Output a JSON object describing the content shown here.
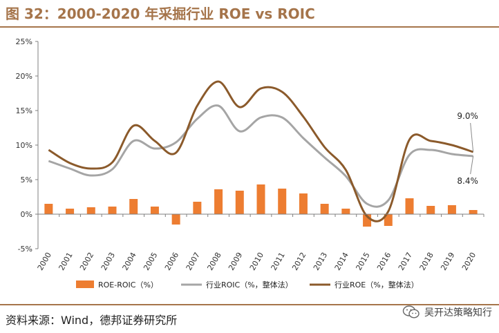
{
  "figure": {
    "title": "图 32：2000-2020 年采掘行业 ROE vs ROIC",
    "source": "资料来源：Wind，德邦证券研究所",
    "watermark": "吴开达策略知行",
    "watermark_icon": "wechat-icon"
  },
  "chart_data": {
    "type": "bar+line",
    "categories": [
      "2000",
      "2001",
      "2002",
      "2003",
      "2004",
      "2005",
      "2006",
      "2007",
      "2008",
      "2009",
      "2010",
      "2011",
      "2012",
      "2013",
      "2014",
      "2015",
      "2016",
      "2017",
      "2018",
      "2019",
      "2020"
    ],
    "ylim": [
      -5,
      25
    ],
    "yticks": [
      -5,
      0,
      5,
      10,
      15,
      20,
      25
    ],
    "ytick_labels": [
      "-5%",
      "0%",
      "5%",
      "10%",
      "15%",
      "20%",
      "25%"
    ],
    "series": [
      {
        "name": "ROE-ROIC（%）",
        "kind": "bar",
        "color": "#ed7d31",
        "values": [
          1.5,
          0.8,
          1.0,
          1.1,
          2.2,
          1.1,
          -1.5,
          1.8,
          3.6,
          3.4,
          4.3,
          3.7,
          3.0,
          1.5,
          0.8,
          -1.8,
          -1.7,
          2.3,
          1.2,
          1.3,
          0.6
        ]
      },
      {
        "name": "行业ROIC（%，整体法）",
        "kind": "line",
        "color": "#a5a5a5",
        "values": [
          7.7,
          6.6,
          5.6,
          6.5,
          10.6,
          9.5,
          10.4,
          13.8,
          15.7,
          12.0,
          14.0,
          14.0,
          11.0,
          8.2,
          5.5,
          1.5,
          2.0,
          8.6,
          9.3,
          8.7,
          8.4
        ]
      },
      {
        "name": "行业ROE（%，整体法）",
        "kind": "line",
        "color": "#8b5a2b",
        "values": [
          9.3,
          7.4,
          6.6,
          7.5,
          12.8,
          10.6,
          8.9,
          15.7,
          19.2,
          15.5,
          18.2,
          17.7,
          14.1,
          9.7,
          6.4,
          -0.3,
          0.4,
          10.8,
          10.6,
          10.0,
          9.0
        ]
      }
    ],
    "annotations": [
      {
        "text": "9.0%",
        "series": 2,
        "index": 20
      },
      {
        "text": "8.4%",
        "series": 1,
        "index": 20
      }
    ],
    "legend_position": "bottom",
    "grid": false
  }
}
